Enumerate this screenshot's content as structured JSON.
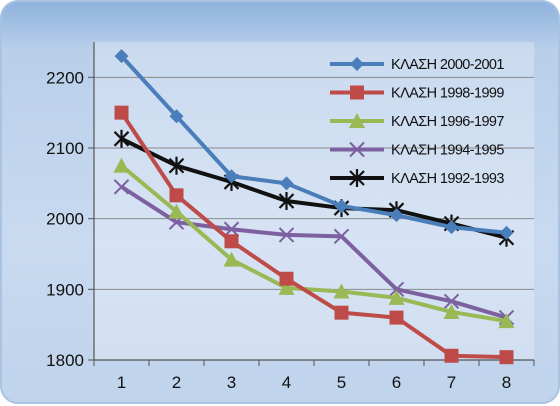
{
  "chart_data": {
    "type": "line",
    "title": "",
    "xlabel": "",
    "ylabel": "",
    "x": [
      1,
      2,
      3,
      4,
      5,
      6,
      7,
      8
    ],
    "ylim": [
      1800,
      2250
    ],
    "yticks": [
      1800,
      1900,
      2000,
      2100,
      2200
    ],
    "grid": true,
    "legend_position": "top-right",
    "series": [
      {
        "name": "ΚΛΑΣΗ 2000-2001",
        "color": "#4a7ebb",
        "marker": "diamond",
        "values": [
          2230,
          2145,
          2060,
          2050,
          2018,
          2005,
          1988,
          1980
        ]
      },
      {
        "name": "ΚΛΑΣΗ 1998-1999",
        "color": "#be4b48",
        "marker": "square",
        "values": [
          2150,
          2033,
          1968,
          1915,
          1867,
          1860,
          1806,
          1804
        ]
      },
      {
        "name": "ΚΛΑΣΗ 1996-1997",
        "color": "#98b954",
        "marker": "triangle",
        "values": [
          2075,
          2010,
          1942,
          1902,
          1897,
          1888,
          1868,
          1855
        ]
      },
      {
        "name": "ΚΛΑΣΗ 1994-1995",
        "color": "#7d60a0",
        "marker": "x",
        "values": [
          2045,
          1995,
          1985,
          1977,
          1975,
          1900,
          1883,
          1860
        ]
      },
      {
        "name": "ΚΛΑΣΗ 1992-1993",
        "color": "#111111",
        "marker": "star",
        "values": [
          2113,
          2075,
          2052,
          2025,
          2015,
          2012,
          1993,
          1973
        ]
      }
    ]
  }
}
